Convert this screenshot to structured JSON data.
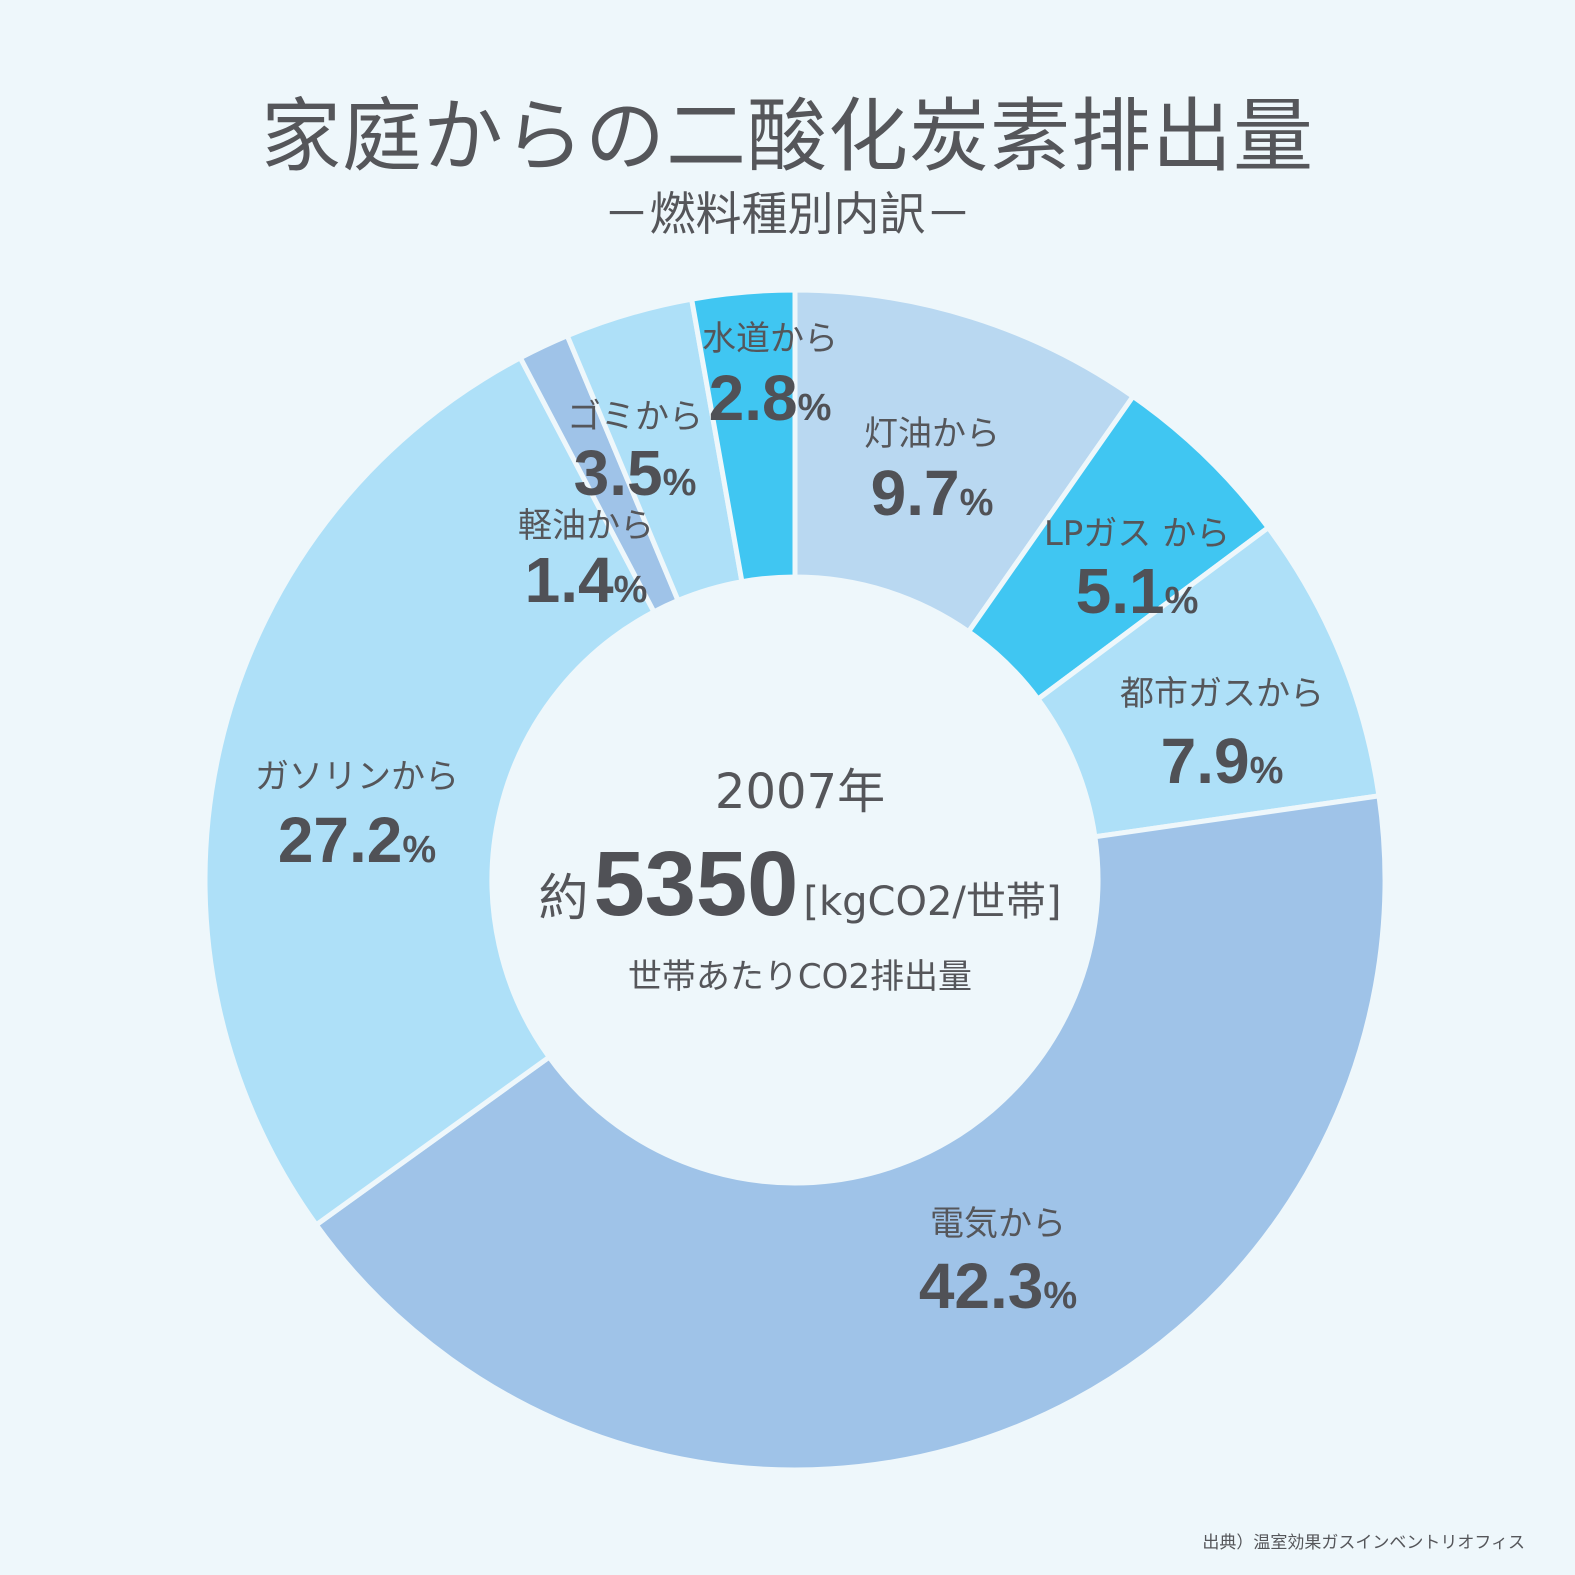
{
  "title": "家庭からの二酸化炭素排出量",
  "subtitle": "－燃料種別内訳－",
  "source": "出典）温室効果ガスインベントリオフィス",
  "center": {
    "year": "2007年",
    "prefix": "約",
    "value": "5350",
    "unit": "[kgCO2/世帯]",
    "caption": "世帯あたりCO2排出量"
  },
  "chart_data": {
    "type": "pie",
    "style": "donut",
    "title": "家庭からの二酸化炭素排出量",
    "subtitle": "－燃料種別内訳－",
    "unit_suffix": "%",
    "slices": [
      {
        "label": "灯油から",
        "value": 9.7,
        "value_text": "9.7",
        "color": "#b9d8f1"
      },
      {
        "label": "LPガス から",
        "value": 5.1,
        "value_text": "5.1",
        "color": "#40c6f2"
      },
      {
        "label": "都市ガスから",
        "value": 7.9,
        "value_text": "7.9",
        "color": "#aee0f8"
      },
      {
        "label": "電気から",
        "value": 42.3,
        "value_text": "42.3",
        "color": "#9fc3e8"
      },
      {
        "label": "ガソリンから",
        "value": 27.2,
        "value_text": "27.2",
        "color": "#aee0f8"
      },
      {
        "label": "軽油から",
        "value": 1.4,
        "value_text": "1.4",
        "color": "#9fc3e8"
      },
      {
        "label": "ゴミから",
        "value": 3.5,
        "value_text": "3.5",
        "color": "#aee0f8"
      },
      {
        "label": "水道から",
        "value": 2.8,
        "value_text": "2.8",
        "color": "#40c6f2"
      }
    ]
  }
}
